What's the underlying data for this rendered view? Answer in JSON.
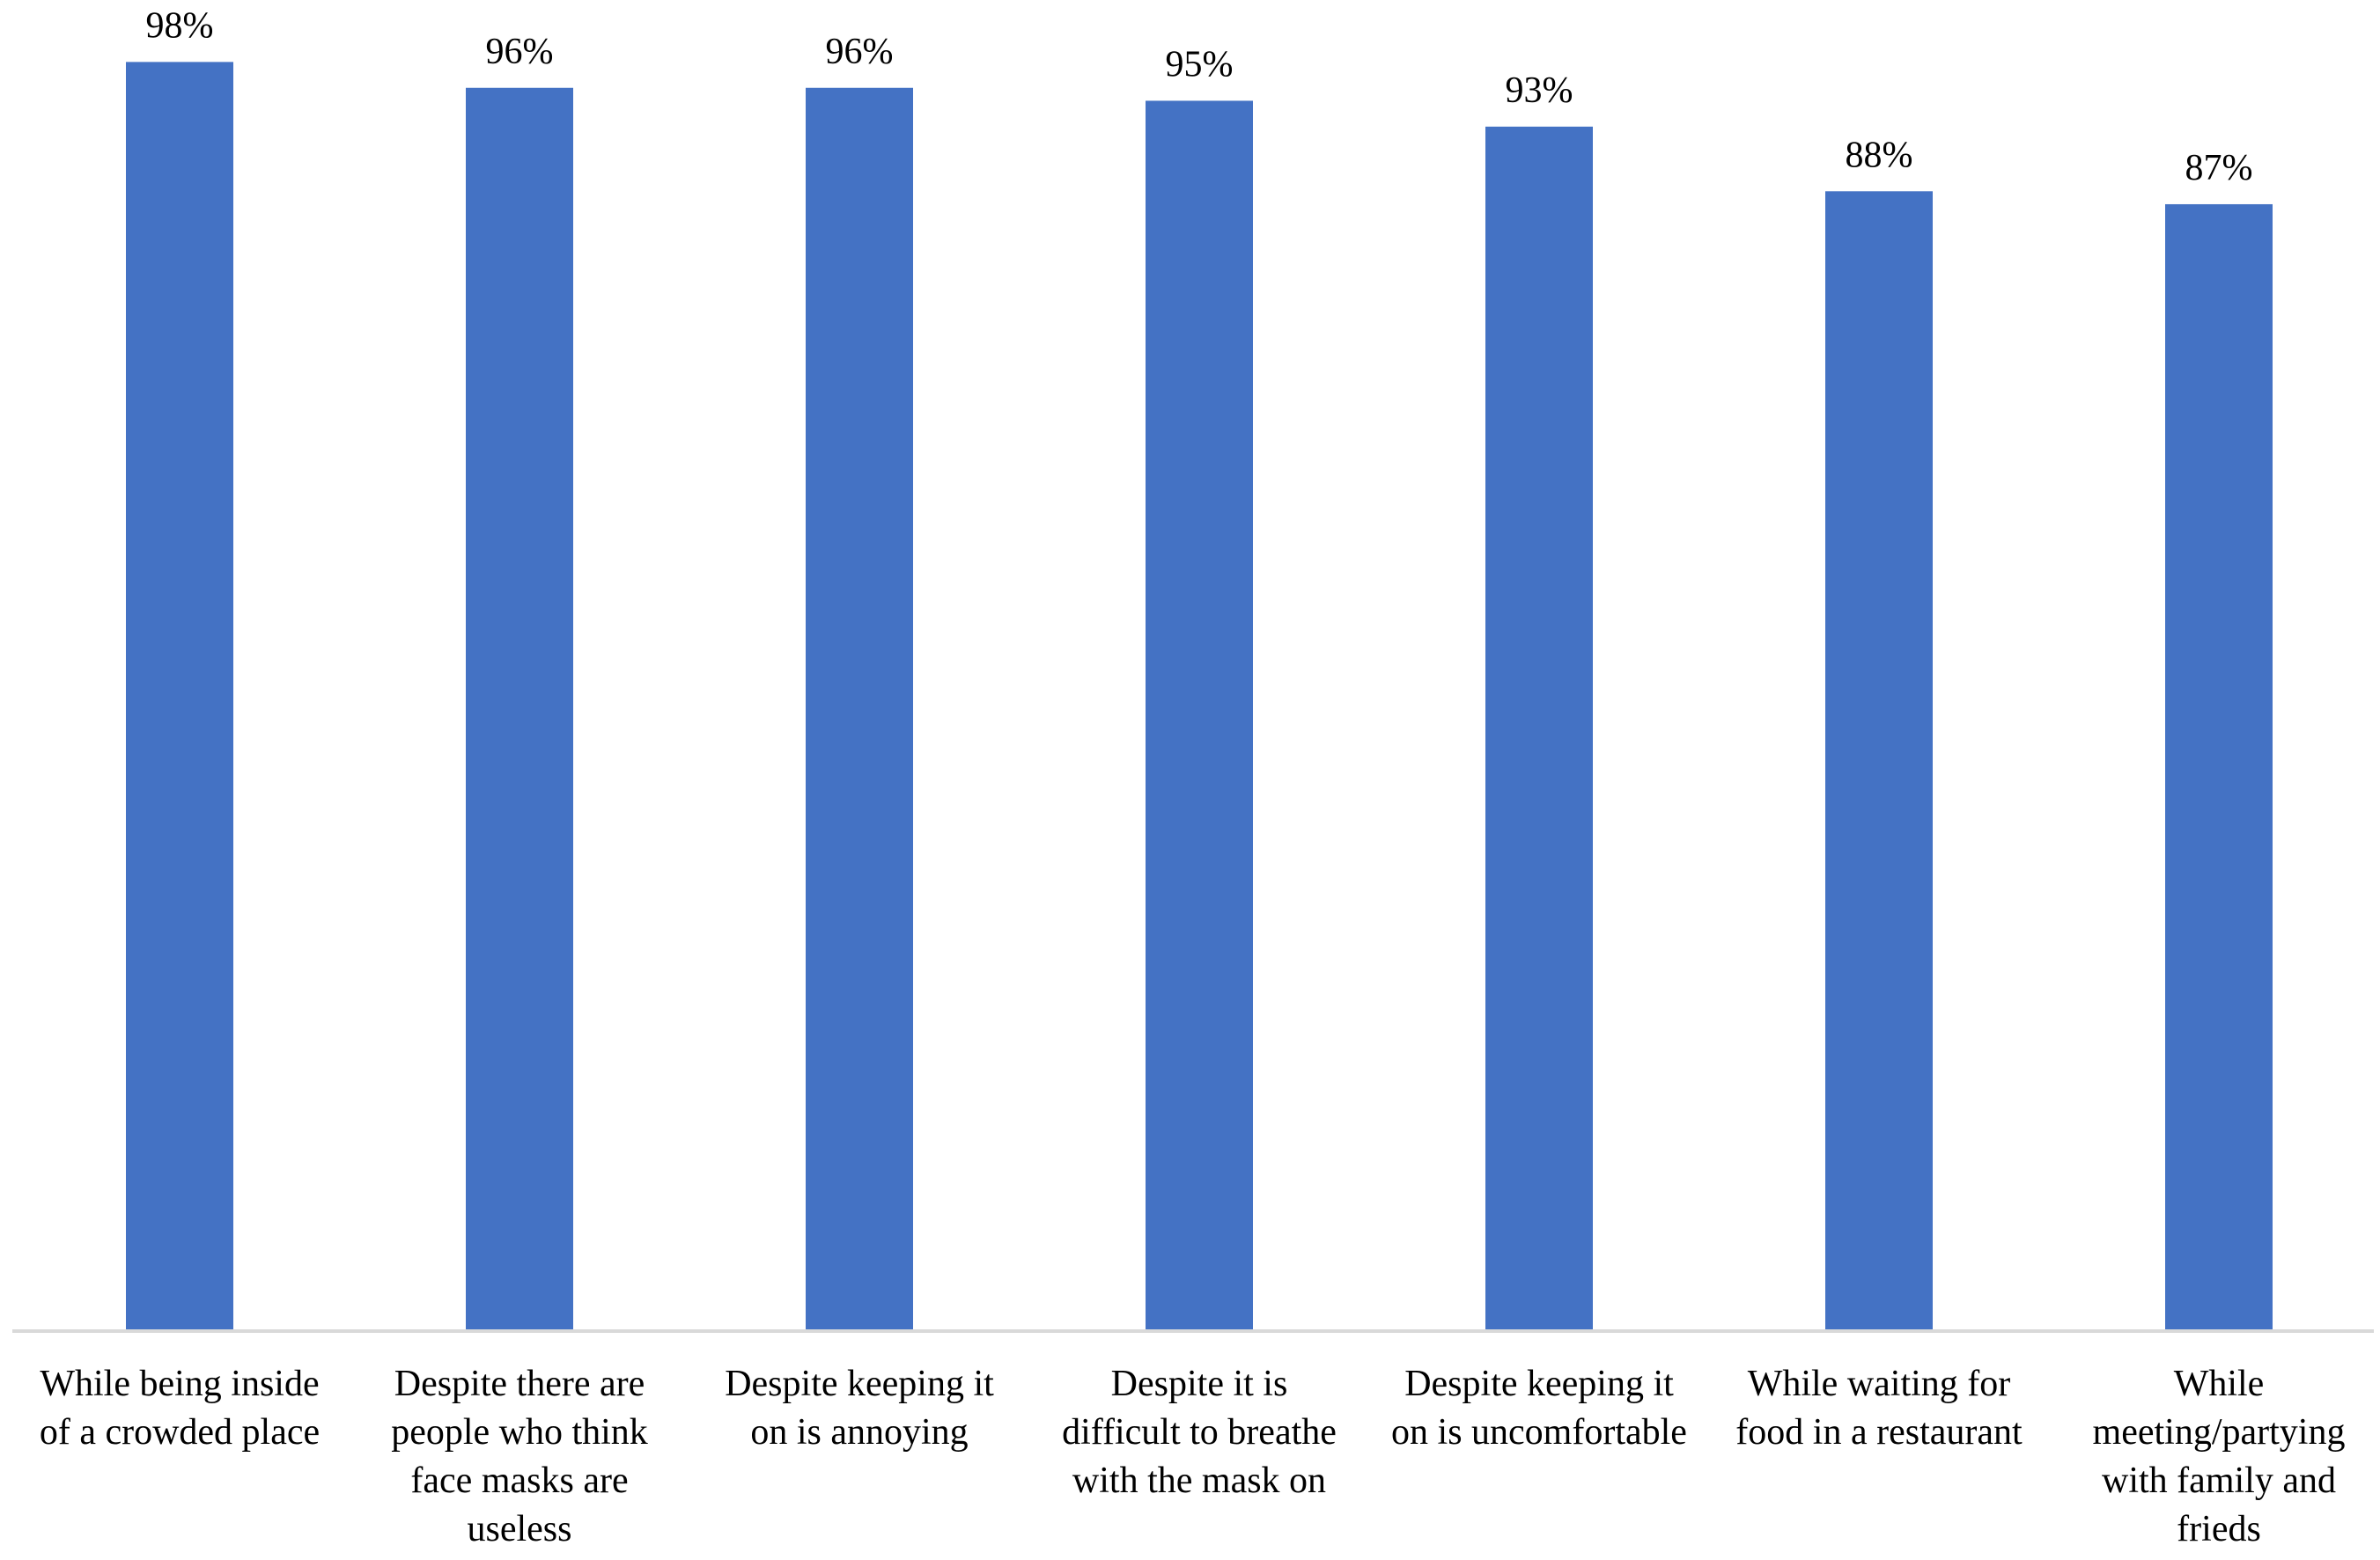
{
  "chart_data": {
    "type": "bar",
    "title": "",
    "xlabel": "",
    "ylabel": "",
    "ylim": [
      0,
      100
    ],
    "grid": false,
    "legend": "none",
    "bar_color": "#4472C4",
    "axis_color": "#D9D9D9",
    "categories": [
      [
        "While being inside",
        "of a crowded place"
      ],
      [
        "Despite there are",
        "people who think",
        "face masks are",
        "useless"
      ],
      [
        "Despite keeping it",
        "on is annoying"
      ],
      [
        "Despite it is",
        "difficult to breathe",
        "with the mask on"
      ],
      [
        "Despite keeping it",
        "on is uncomfortable"
      ],
      [
        "While waiting for",
        "food in a restaurant"
      ],
      [
        "While",
        "meeting/partying",
        "with family and",
        "frieds"
      ]
    ],
    "values": [
      98,
      96,
      96,
      95,
      93,
      88,
      87
    ],
    "value_labels": [
      "98%",
      "96%",
      "96%",
      "95%",
      "93%",
      "88%",
      "87%"
    ]
  }
}
